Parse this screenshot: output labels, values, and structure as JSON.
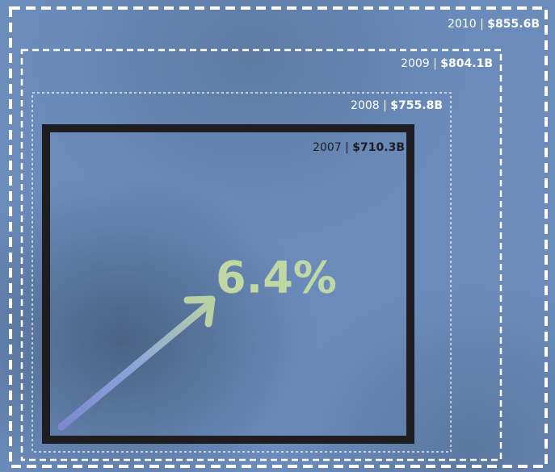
{
  "boxes": [
    {
      "year": "2010",
      "amount": "$855.6B"
    },
    {
      "year": "2009",
      "amount": "$804.1B"
    },
    {
      "year": "2008",
      "amount": "$755.8B"
    },
    {
      "year": "2007",
      "amount": "$710.3B"
    }
  ],
  "separator": "|",
  "growth": "6.4%"
}
